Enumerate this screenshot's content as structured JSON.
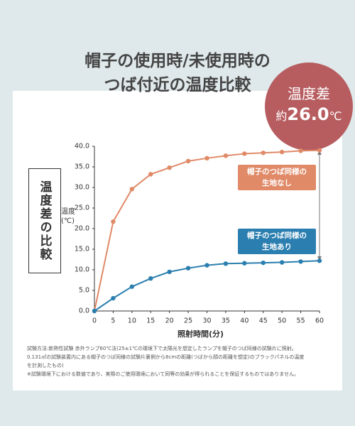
{
  "header": {
    "title_lines": [
      "帽子の使用時/未使用時の",
      "つば付近の温度比較"
    ]
  },
  "badge": {
    "label": "温度差",
    "prefix": "約",
    "value": "26.0",
    "unit": "℃"
  },
  "side_label": "温度差の比較",
  "chart_data": {
    "type": "line",
    "x_label": "照射時間(分)",
    "y_label": "温度\n(℃)",
    "x": [
      0,
      5,
      10,
      15,
      20,
      25,
      30,
      35,
      40,
      45,
      50,
      55,
      60
    ],
    "series": [
      {
        "name": "帽子のつば同様の\n生地なし",
        "color": "#e08a68",
        "values": [
          0,
          21.7,
          29.6,
          33.2,
          34.8,
          36.4,
          37.1,
          37.7,
          38.2,
          38.4,
          38.6,
          38.9,
          39.0
        ]
      },
      {
        "name": "帽子のつば同様の\n生地あり",
        "color": "#2b7fb0",
        "values": [
          0,
          3.1,
          5.9,
          7.9,
          9.5,
          10.4,
          11.1,
          11.5,
          11.6,
          11.7,
          11.8,
          12.0,
          12.2
        ]
      }
    ],
    "xlim": [
      0,
      60
    ],
    "xticks": [
      0,
      5,
      10,
      15,
      20,
      25,
      30,
      35,
      40,
      45,
      50,
      55,
      60
    ],
    "ylim": [
      0,
      40
    ],
    "yticks": [
      {
        "value": 0,
        "label": "0.0"
      },
      {
        "value": 5,
        "label": "5.0"
      },
      {
        "value": 10,
        "label": "10.0"
      },
      {
        "value": 15,
        "label": "15.0"
      },
      {
        "value": 20,
        "label": "20.0"
      },
      {
        "value": 25,
        "label": "25.0"
      },
      {
        "value": 30,
        "label": "30.0"
      },
      {
        "value": 35,
        "label": "35.0"
      },
      {
        "value": 40,
        "label": "40.0"
      }
    ],
    "grid": false
  },
  "notes": [
    "試験方法:新熱性試験 赤外ランプ60℃法(25±1℃の環境下で太陽光を想定したランプを帽子のつば同様の試験片に照射。",
    "0.131㎡の試験装置内にある帽子のつば同様の試験片裏側から8cmの距離(つばから顔の距離を想定)のブラックパネルの温度",
    "を計測したもの)",
    "※試験環境下における数値であり、実際のご使用環境において同等の効果が得られることを保証するものではありません。"
  ]
}
